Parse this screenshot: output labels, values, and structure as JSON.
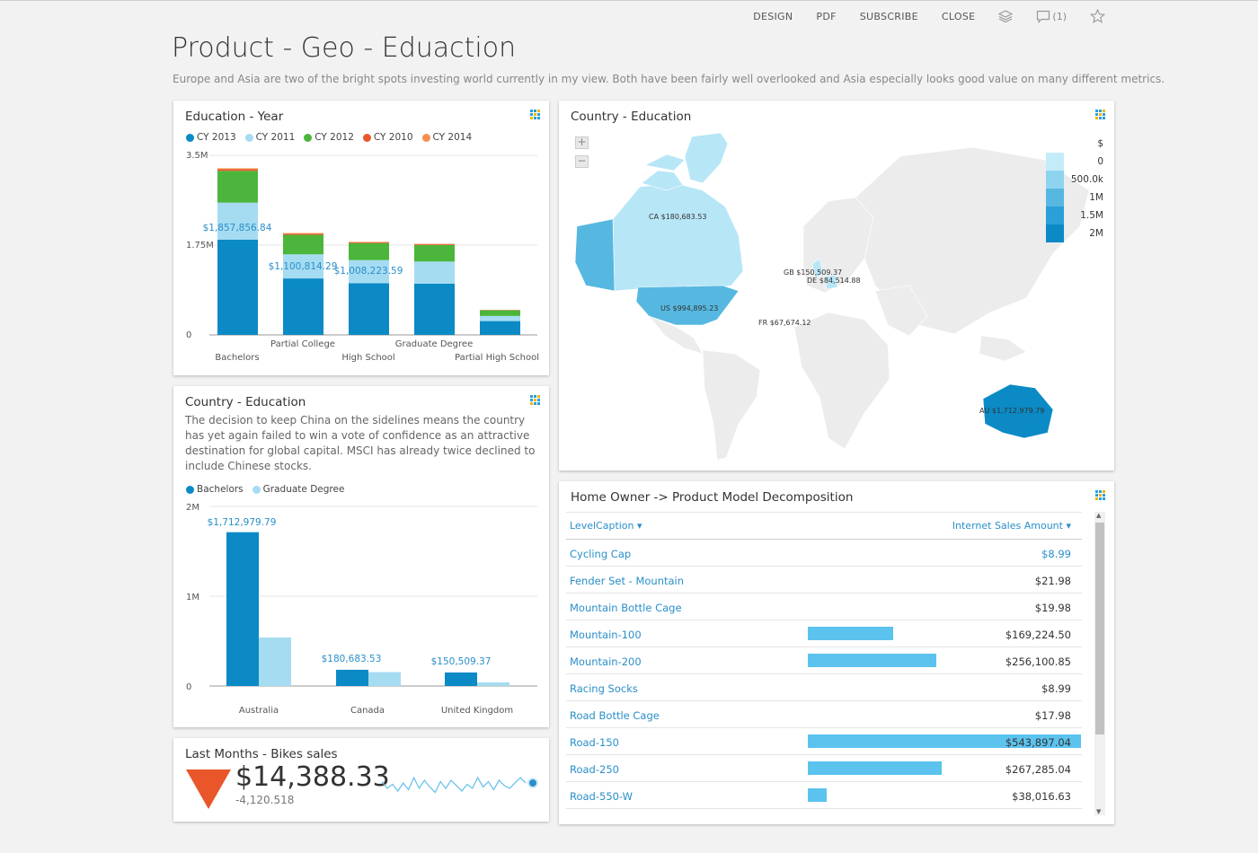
{
  "toolbar": {
    "design": "DESIGN",
    "pdf": "PDF",
    "subscribe": "SUBSCRIBE",
    "close": "CLOSE",
    "comments": "(1)"
  },
  "page": {
    "title": "Product - Geo - Eduaction",
    "subtitle": "Europe and Asia are two of the bright spots investing world currently in my view. Both have been fairly well overlooked and Asia especially looks good value on many different metrics."
  },
  "colors": {
    "cy2013": "#0b8ac6",
    "cy2011": "#a6dcf2",
    "cy2012": "#4cb53b",
    "cy2010": "#e8562a",
    "cy2014": "#f5904f",
    "bachelors": "#0b8ac6",
    "graduate": "#a6dcf2",
    "kpi_down": "#e8562a",
    "table_bar": "#5bc3ee"
  },
  "edu_year": {
    "title": "Education - Year",
    "legend": [
      "CY 2013",
      "CY 2011",
      "CY 2012",
      "CY 2010",
      "CY 2014"
    ],
    "yticks": [
      "3.5M",
      "1.75M",
      "0"
    ],
    "x_labels": [
      "Bachelors",
      "Partial College",
      "High School",
      "Graduate Degree",
      "Partial High School"
    ],
    "data_labels": [
      "$1,857,856.84",
      "$1,100,814.29",
      "$1,008,223.59"
    ]
  },
  "country_edu_bar": {
    "title": "Country - Education",
    "narrative": "The decision to keep China on the sidelines means the country has yet again failed to win a vote of confidence as an attractive destination for global capital. MSCI has already twice declined to include Chinese stocks.",
    "legend": [
      "Bachelors",
      "Graduate Degree"
    ],
    "yticks": [
      "2M",
      "1M",
      "0"
    ],
    "x_labels": [
      "Australia",
      "Canada",
      "United Kingdom"
    ],
    "data_labels": [
      "$1,712,979.79",
      "$180,683.53",
      "$150,509.37"
    ]
  },
  "kpi": {
    "title": "Last Months - Bikes sales",
    "value": "$14,388.33",
    "delta": "-4,120.518",
    "sparkline": [
      0.55,
      0.3,
      0.45,
      0.2,
      0.5,
      0.25,
      0.7,
      0.3,
      0.6,
      0.35,
      0.15,
      0.55,
      0.3,
      0.6,
      0.4,
      0.2,
      0.45,
      0.3,
      0.7,
      0.35,
      0.55,
      0.25,
      0.6,
      0.4,
      0.3,
      0.5,
      0.7,
      0.5
    ]
  },
  "map": {
    "title": "Country - Education",
    "legend_title": "$",
    "legend_items": [
      "0",
      "500.0k",
      "1M",
      "1.5M",
      "2M"
    ],
    "labels": {
      "ca": "CA $180,683.53",
      "gb": "GB $150,509.37",
      "de": "DE $84,514.88",
      "us": "US $994,895.23",
      "fr": "FR $67,674.12",
      "au": "AU $1,712,979.79"
    }
  },
  "decomp": {
    "title": "Home Owner -> Product Model Decomposition",
    "col1": "LevelCaption",
    "col2": "Internet Sales Amount",
    "rows": [
      {
        "name": "Cycling Cap",
        "value": "$8.99",
        "bar": 0
      },
      {
        "name": "Fender Set - Mountain",
        "value": "$21.98",
        "bar": 0
      },
      {
        "name": "Mountain Bottle Cage",
        "value": "$19.98",
        "bar": 0
      },
      {
        "name": "Mountain-100",
        "value": "$169,224.50",
        "bar": 0.311
      },
      {
        "name": "Mountain-200",
        "value": "$256,100.85",
        "bar": 0.471
      },
      {
        "name": "Racing Socks",
        "value": "$8.99",
        "bar": 0
      },
      {
        "name": "Road Bottle Cage",
        "value": "$17.98",
        "bar": 0
      },
      {
        "name": "Road-150",
        "value": "$543,897.04",
        "bar": 1.0
      },
      {
        "name": "Road-250",
        "value": "$267,285.04",
        "bar": 0.491
      },
      {
        "name": "Road-550-W",
        "value": "$38,016.63",
        "bar": 0.07
      }
    ]
  },
  "chart_data": [
    {
      "type": "bar",
      "stacked": true,
      "title": "Education - Year",
      "categories": [
        "Bachelors",
        "Partial College",
        "High School",
        "Graduate Degree",
        "Partial High School"
      ],
      "ylim": [
        0,
        3500000
      ],
      "series": [
        {
          "name": "CY 2013",
          "values": [
            1857856.84,
            1100814.29,
            1008223.59,
            1000000,
            270000
          ]
        },
        {
          "name": "CY 2011",
          "values": [
            720000,
            470000,
            450000,
            430000,
            100000
          ]
        },
        {
          "name": "CY 2012",
          "values": [
            620000,
            380000,
            330000,
            320000,
            110000
          ]
        },
        {
          "name": "CY 2010",
          "values": [
            30000,
            20000,
            15000,
            15000,
            5000
          ]
        },
        {
          "name": "CY 2014",
          "values": [
            20000,
            15000,
            10000,
            10000,
            5000
          ]
        }
      ]
    },
    {
      "type": "bar",
      "title": "Country - Education",
      "categories": [
        "Australia",
        "Canada",
        "United Kingdom"
      ],
      "ylim": [
        0,
        2000000
      ],
      "series": [
        {
          "name": "Bachelors",
          "values": [
            1712979.79,
            180683.53,
            150509.37
          ]
        },
        {
          "name": "Graduate Degree",
          "values": [
            540000,
            155000,
            40000
          ]
        }
      ]
    }
  ]
}
